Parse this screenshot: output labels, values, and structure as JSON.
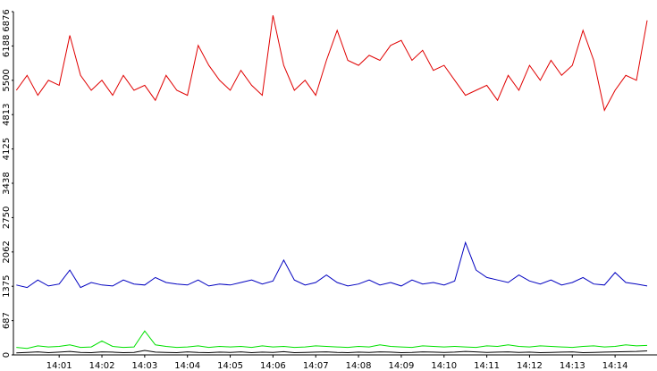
{
  "chart_data": {
    "type": "line",
    "x": [
      0,
      0.25,
      0.5,
      0.75,
      1,
      1.25,
      1.5,
      1.75,
      2,
      2.25,
      2.5,
      2.75,
      3,
      3.25,
      3.5,
      3.75,
      4,
      4.25,
      4.5,
      4.75,
      5,
      5.25,
      5.5,
      5.75,
      6,
      6.25,
      6.5,
      6.75,
      7,
      7.25,
      7.5,
      7.75,
      8,
      8.25,
      8.5,
      8.75,
      9,
      9.25,
      9.5,
      9.75,
      10,
      10.25,
      10.5,
      10.75,
      11,
      11.25,
      11.5,
      11.75,
      12,
      12.25,
      12.5,
      12.75,
      13,
      13.25,
      13.5,
      13.75,
      14,
      14.25,
      14.5,
      14.75
    ],
    "series": [
      {
        "color": "#e00000",
        "values": [
          5300,
          5600,
          5200,
          5500,
          5400,
          6400,
          5600,
          5300,
          5500,
          5200,
          5600,
          5300,
          5400,
          5100,
          5600,
          5300,
          5200,
          6200,
          5800,
          5500,
          5300,
          5700,
          5400,
          5200,
          6800,
          5800,
          5300,
          5500,
          5200,
          5900,
          6500,
          5900,
          5800,
          6000,
          5900,
          6200,
          6300,
          5900,
          6100,
          5700,
          5800,
          5500,
          5200,
          5300,
          5400,
          5100,
          5600,
          5300,
          5800,
          5500,
          5900,
          5600,
          5800,
          6500,
          5900,
          4900,
          5300,
          5600,
          5500,
          6700
        ]
      },
      {
        "color": "#0000c0",
        "values": [
          1400,
          1350,
          1500,
          1380,
          1420,
          1700,
          1350,
          1450,
          1400,
          1380,
          1500,
          1420,
          1400,
          1550,
          1450,
          1420,
          1400,
          1500,
          1380,
          1420,
          1400,
          1450,
          1500,
          1420,
          1480,
          1900,
          1500,
          1400,
          1450,
          1600,
          1450,
          1380,
          1420,
          1500,
          1400,
          1450,
          1380,
          1500,
          1420,
          1450,
          1400,
          1480,
          2250,
          1700,
          1550,
          1500,
          1450,
          1600,
          1480,
          1420,
          1500,
          1400,
          1450,
          1550,
          1420,
          1400,
          1650,
          1450,
          1420,
          1380
        ]
      },
      {
        "color": "#00e000",
        "values": [
          150,
          130,
          180,
          160,
          170,
          200,
          150,
          160,
          280,
          170,
          150,
          160,
          480,
          200,
          170,
          150,
          160,
          180,
          150,
          170,
          160,
          170,
          150,
          180,
          160,
          170,
          150,
          160,
          180,
          170,
          160,
          150,
          170,
          160,
          200,
          170,
          160,
          150,
          180,
          170,
          160,
          170,
          160,
          150,
          180,
          170,
          200,
          170,
          160,
          180,
          170,
          160,
          150,
          170,
          180,
          160,
          170,
          200,
          180,
          190
        ]
      },
      {
        "color": "#000000",
        "values": [
          40,
          50,
          60,
          45,
          55,
          70,
          50,
          45,
          60,
          55,
          45,
          50,
          90,
          55,
          50,
          45,
          60,
          50,
          45,
          55,
          50,
          60,
          45,
          55,
          50,
          65,
          45,
          50,
          55,
          60,
          50,
          45,
          55,
          50,
          60,
          55,
          45,
          50,
          60,
          55,
          50,
          55,
          70,
          60,
          50,
          55,
          60,
          50,
          55,
          45,
          50,
          55,
          60,
          45,
          50,
          55,
          60,
          65,
          70,
          80
        ]
      }
    ],
    "xlim": [
      -0.07,
      14.98
    ],
    "xticks": [
      {
        "value": 1,
        "label": "14:01"
      },
      {
        "value": 2,
        "label": "14:02"
      },
      {
        "value": 3,
        "label": "14:03"
      },
      {
        "value": 4,
        "label": "14:04"
      },
      {
        "value": 5,
        "label": "14:05"
      },
      {
        "value": 6,
        "label": "14:06"
      },
      {
        "value": 7,
        "label": "14:07"
      },
      {
        "value": 8,
        "label": "14:08"
      },
      {
        "value": 9,
        "label": "14:09"
      },
      {
        "value": 10,
        "label": "14:10"
      },
      {
        "value": 11,
        "label": "14:11"
      },
      {
        "value": 12,
        "label": "14:12"
      },
      {
        "value": 13,
        "label": "14:13"
      },
      {
        "value": 14,
        "label": "14:14"
      }
    ],
    "ylim": [
      0,
      6876
    ],
    "yticks": [
      0,
      687,
      1375,
      2062,
      2750,
      3438,
      4125,
      4813,
      5500,
      6188,
      6876
    ]
  }
}
